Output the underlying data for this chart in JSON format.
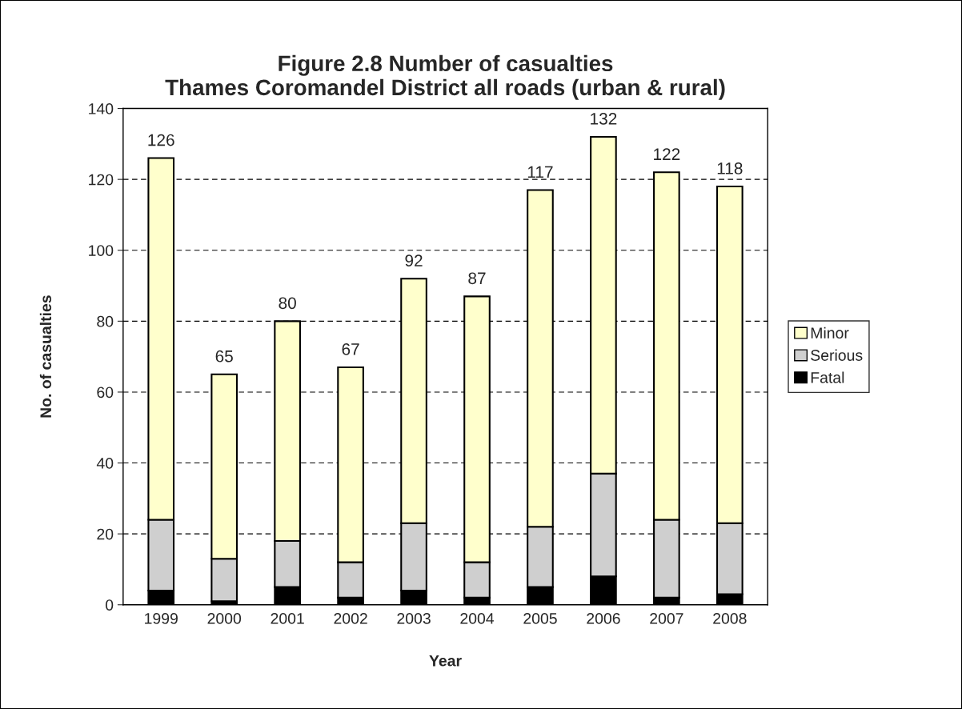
{
  "chart_data": {
    "type": "bar",
    "title": "Figure 2.8 Number of casualties\nThames Coromandel District all roads (urban & rural)",
    "xlabel": "Year",
    "ylabel": "No. of casualties",
    "categories": [
      "1999",
      "2000",
      "2001",
      "2002",
      "2003",
      "2004",
      "2005",
      "2006",
      "2007",
      "2008"
    ],
    "stacked": true,
    "series": [
      {
        "name": "Fatal",
        "color": "#000000",
        "values": [
          4,
          1,
          5,
          2,
          4,
          2,
          5,
          8,
          2,
          3
        ]
      },
      {
        "name": "Serious",
        "color": "#cfcfcf",
        "values": [
          20,
          12,
          13,
          10,
          19,
          10,
          17,
          29,
          22,
          20
        ]
      },
      {
        "name": "Minor",
        "color": "#ffffcc",
        "values": [
          102,
          52,
          62,
          55,
          69,
          75,
          95,
          95,
          98,
          95
        ]
      }
    ],
    "totals": [
      "126",
      "65",
      "80",
      "67",
      "92",
      "87",
      "117",
      "132",
      "122",
      "118"
    ],
    "ylim": [
      0,
      140
    ],
    "yticks": [
      0,
      20,
      40,
      60,
      80,
      100,
      120,
      140
    ],
    "grid": "y",
    "legend": "right"
  }
}
